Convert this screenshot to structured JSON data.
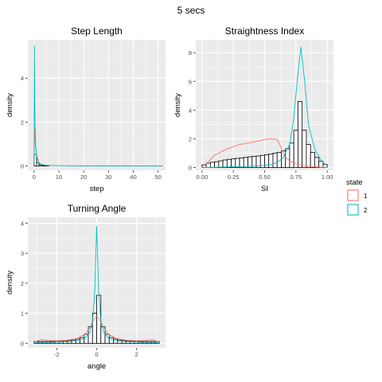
{
  "figure": {
    "title": "5 secs"
  },
  "colors": {
    "state1": "#F8766D",
    "state2": "#00BFC4",
    "panel": "#EBEBEB",
    "hist_fill": "#FFFFFF",
    "hist_stroke": "#000000"
  },
  "legend": {
    "title": "state",
    "entries": [
      "1",
      "2"
    ],
    "placement": "right"
  },
  "chart_data": [
    {
      "type": "histogram+density",
      "title": "Step Length",
      "xlabel": "step",
      "ylabel": "density",
      "xlim": [
        -2.5,
        53
      ],
      "ylim": [
        -0.2,
        5.75
      ],
      "xticks": [
        0,
        10,
        20,
        30,
        40,
        50
      ],
      "yticks": [
        0,
        2,
        4
      ],
      "grid": true,
      "histogram": {
        "edges": [
          0,
          1,
          2,
          3,
          4,
          5,
          6
        ],
        "heights": [
          0.52,
          0.14,
          0.06,
          0.03,
          0.02,
          0.01
        ]
      },
      "series": [
        {
          "name": "1",
          "x": [
            0,
            0.3,
            0.6,
            1,
            2,
            3,
            5,
            10,
            20,
            52
          ],
          "y": [
            0.3,
            1.75,
            0.9,
            0.5,
            0.15,
            0.06,
            0.03,
            0.01,
            0,
            0
          ]
        },
        {
          "name": "2",
          "x": [
            0,
            0.15,
            0.35,
            0.7,
            1.2,
            2,
            3,
            5,
            10,
            20,
            52
          ],
          "y": [
            0.1,
            5.5,
            2.2,
            0.9,
            0.35,
            0.12,
            0.06,
            0.03,
            0.01,
            0.005,
            0
          ]
        }
      ]
    },
    {
      "type": "histogram+density",
      "title": "Straightness Index",
      "xlabel": "SI",
      "ylabel": "density",
      "xlim": [
        -0.05,
        1.05
      ],
      "ylim": [
        -0.2,
        8.9
      ],
      "xticks": [
        0,
        0.25,
        0.5,
        0.75,
        1
      ],
      "xticklabels": [
        "0.00",
        "0.25",
        "0.50",
        "0.75",
        "1.00"
      ],
      "yticks": [
        0,
        2,
        4,
        6,
        8
      ],
      "grid": true,
      "histogram": {
        "edges": [
          0,
          0.0333,
          0.0667,
          0.1,
          0.1333,
          0.1667,
          0.2,
          0.2333,
          0.2667,
          0.3,
          0.3333,
          0.3667,
          0.4,
          0.4333,
          0.4667,
          0.5,
          0.5333,
          0.5667,
          0.6,
          0.6333,
          0.6667,
          0.7,
          0.7333,
          0.7667,
          0.8,
          0.8333,
          0.8667,
          0.9,
          0.9333,
          0.9667,
          1.0
        ],
        "heights": [
          0.18,
          0.3,
          0.36,
          0.4,
          0.46,
          0.52,
          0.56,
          0.6,
          0.63,
          0.66,
          0.7,
          0.74,
          0.77,
          0.8,
          0.84,
          0.88,
          0.94,
          1.0,
          1.05,
          1.15,
          1.3,
          1.7,
          2.6,
          4.6,
          2.6,
          1.6,
          1.05,
          0.7,
          0.42,
          0.2
        ]
      },
      "series": [
        {
          "name": "1",
          "x": [
            0,
            0.05,
            0.1,
            0.2,
            0.3,
            0.4,
            0.5,
            0.55,
            0.6,
            0.62,
            0.66,
            0.7,
            0.75,
            0.8,
            0.85,
            0.9,
            0.95,
            1.0
          ],
          "y": [
            0.02,
            0.4,
            0.85,
            1.3,
            1.6,
            1.75,
            1.95,
            2.0,
            1.95,
            1.6,
            0.8,
            0.45,
            0.25,
            0.15,
            0.08,
            0.05,
            0.02,
            0.01
          ]
        },
        {
          "name": "2",
          "x": [
            0,
            0.1,
            0.2,
            0.3,
            0.4,
            0.5,
            0.55,
            0.6,
            0.65,
            0.7,
            0.73,
            0.76,
            0.79,
            0.82,
            0.85,
            0.9,
            0.95,
            1.0
          ],
          "y": [
            0,
            0.02,
            0.04,
            0.06,
            0.09,
            0.14,
            0.2,
            0.35,
            0.7,
            1.6,
            3.2,
            6.0,
            8.4,
            6.0,
            3.0,
            1.3,
            0.5,
            0.1
          ]
        }
      ]
    },
    {
      "type": "histogram+density",
      "title": "Turning Angle",
      "xlabel": "angle",
      "ylabel": "density",
      "xlim": [
        -3.45,
        3.45
      ],
      "ylim": [
        -0.15,
        4.2
      ],
      "xticks": [
        -2,
        0,
        2
      ],
      "yticks": [
        0,
        1,
        2,
        3,
        4
      ],
      "grid": true,
      "histogram": {
        "edges": [
          -3.1416,
          -2.9321,
          -2.7227,
          -2.5133,
          -2.3038,
          -2.0944,
          -1.885,
          -1.6755,
          -1.4661,
          -1.2566,
          -1.0472,
          -0.8378,
          -0.6283,
          -0.4189,
          -0.2094,
          0,
          0.2094,
          0.4189,
          0.6283,
          0.8378,
          1.0472,
          1.2566,
          1.4661,
          1.6755,
          1.885,
          2.0944,
          2.3038,
          2.5133,
          2.7227,
          2.9321,
          3.1416
        ],
        "heights": [
          0.06,
          0.06,
          0.06,
          0.06,
          0.06,
          0.07,
          0.07,
          0.08,
          0.09,
          0.11,
          0.14,
          0.19,
          0.3,
          0.55,
          1.0,
          1.6,
          0.55,
          0.3,
          0.19,
          0.14,
          0.11,
          0.09,
          0.08,
          0.07,
          0.07,
          0.06,
          0.06,
          0.06,
          0.06,
          0.06
        ]
      },
      "series": [
        {
          "name": "1",
          "x": [
            -3.14,
            -2.8,
            -2.5,
            -2,
            -1.5,
            -1,
            -0.6,
            -0.3,
            -0.1,
            0,
            0.1,
            0.3,
            0.6,
            1,
            1.5,
            2,
            2.5,
            2.8,
            3.14
          ],
          "y": [
            0.04,
            0.12,
            0.1,
            0.08,
            0.1,
            0.16,
            0.3,
            0.55,
            0.85,
            0.9,
            0.85,
            0.55,
            0.3,
            0.16,
            0.1,
            0.08,
            0.1,
            0.12,
            0.04
          ]
        },
        {
          "name": "2",
          "x": [
            -3.14,
            -2.5,
            -2,
            -1.5,
            -1,
            -0.6,
            -0.35,
            -0.2,
            -0.1,
            -0.04,
            0,
            0.04,
            0.1,
            0.2,
            0.35,
            0.6,
            1,
            1.5,
            2,
            2.5,
            3.14
          ],
          "y": [
            0.03,
            0.03,
            0.04,
            0.05,
            0.08,
            0.16,
            0.35,
            0.8,
            1.7,
            3.0,
            3.9,
            3.0,
            1.7,
            0.8,
            0.35,
            0.16,
            0.08,
            0.05,
            0.04,
            0.03,
            0.03
          ]
        }
      ]
    }
  ]
}
